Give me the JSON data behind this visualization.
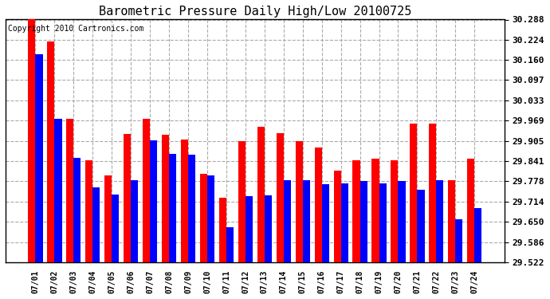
{
  "title": "Barometric Pressure Daily High/Low 20100725",
  "copyright": "Copyright 2010 Cartronics.com",
  "yticks": [
    30.288,
    30.224,
    30.16,
    30.097,
    30.033,
    29.969,
    29.905,
    29.841,
    29.778,
    29.714,
    29.65,
    29.586,
    29.522
  ],
  "ylim_low": 29.522,
  "ylim_high": 30.288,
  "dates": [
    "07/01",
    "07/02",
    "07/03",
    "07/04",
    "07/05",
    "07/06",
    "07/07",
    "07/08",
    "07/09",
    "07/10",
    "07/11",
    "07/12",
    "07/13",
    "07/14",
    "07/15",
    "07/16",
    "07/17",
    "07/18",
    "07/19",
    "07/20",
    "07/21",
    "07/22",
    "07/23",
    "07/24"
  ],
  "highs": [
    30.29,
    30.22,
    29.975,
    29.845,
    29.795,
    29.928,
    29.975,
    29.925,
    29.91,
    29.8,
    29.725,
    29.905,
    29.95,
    29.93,
    29.905,
    29.885,
    29.81,
    29.845,
    29.85,
    29.845,
    29.96,
    29.96,
    29.782,
    29.85
  ],
  "lows": [
    30.178,
    29.975,
    29.852,
    29.758,
    29.735,
    29.782,
    29.908,
    29.865,
    29.862,
    29.795,
    29.632,
    29.73,
    29.732,
    29.782,
    29.782,
    29.768,
    29.772,
    29.778,
    29.772,
    29.778,
    29.752,
    29.782,
    29.658,
    29.692
  ],
  "high_color": "#ff0000",
  "low_color": "#0000ff",
  "background_color": "#ffffff",
  "grid_color": "#aaaaaa",
  "title_fontsize": 11,
  "copyright_fontsize": 7,
  "bar_width": 0.38,
  "figure_width": 6.9,
  "figure_height": 3.75,
  "dpi": 100
}
